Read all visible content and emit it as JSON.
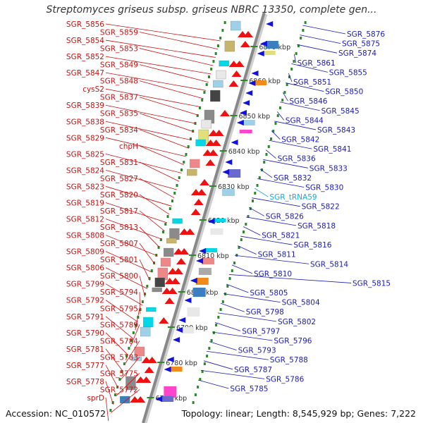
{
  "title": "Streptomyces griseus subsp. griseus NBRC 13350, complete gen...",
  "footer": {
    "accession": "Accession: NC_010572",
    "summary": "Topology: linear; Length: 8,545,929 bp; Genes: 7,222"
  },
  "colors": {
    "left_label": "#cc1111",
    "right_label": "#1a1ab8",
    "rna_label": "#19a9d8",
    "axis": "#888888",
    "tick": "#2a8a2a",
    "forward_gene": "#ee1111",
    "reverse_gene": "#1111dd"
  },
  "axis_ticks": [
    "6870 kbp",
    "6860 kbp",
    "6850 kbp",
    "6840 kbp",
    "6830 kbp",
    "6820 kbp",
    "6810 kbp",
    "6800 kbp",
    "6790 kbp",
    "6780 kbp",
    "6770 kbp"
  ],
  "left_labels": [
    "SGR_5856",
    "SGR_5859",
    "SGR_5854",
    "SGR_5853",
    "SGR_5852",
    "SGR_5849",
    "SGR_5847",
    "SGR_5848",
    "cysS2",
    "SGR_5837",
    "SGR_5839",
    "SGR_5835",
    "SGR_5838",
    "SGR_5834",
    "SGR_5829",
    "chpH",
    "SGR_5825",
    "SGR_5831",
    "SGR_5824",
    "SGR_5827",
    "SGR_5823",
    "SGR_5820",
    "SGR_5819",
    "SGR_5817",
    "SGR_5812",
    "SGR_5813",
    "SGR_5808",
    "SGR_5807",
    "SGR_5809",
    "SGR_5801",
    "SGR_5806",
    "SGR_5800",
    "SGR_5799",
    "SGR_5794",
    "SGR_5792",
    "SGR_5795",
    "SGR_5791",
    "SGR_5789",
    "SGR_5790",
    "SGR_5784",
    "SGR_5781",
    "SGR_5783",
    "SGR_5777",
    "SGR_5775",
    "SGR_5778",
    "SGR_5772",
    "sprD"
  ],
  "right_labels": [
    "SGR_5876",
    "SGR_5875",
    "SGR_5874",
    "SGR_5861",
    "SGR_5855",
    "SGR_5851",
    "SGR_5850",
    "SGR_5846",
    "SGR_5845",
    "SGR_5844",
    "SGR_5843",
    "SGR_5842",
    "SGR_5841",
    "SGR_5836",
    "SGR_5833",
    "SGR_5832",
    "SGR_5830",
    "SGR_tRNA59",
    "SGR_5822",
    "SGR_5826",
    "SGR_5818",
    "SGR_5821",
    "SGR_5816",
    "SGR_5811",
    "SGR_5814",
    "SGR_5810",
    "SGR_5815",
    "SGR_5805",
    "SGR_5804",
    "SGR_5798",
    "SGR_5802",
    "SGR_5797",
    "SGR_5796",
    "SGR_5793",
    "SGR_5788",
    "SGR_5787",
    "SGR_5786",
    "SGR_5785"
  ]
}
